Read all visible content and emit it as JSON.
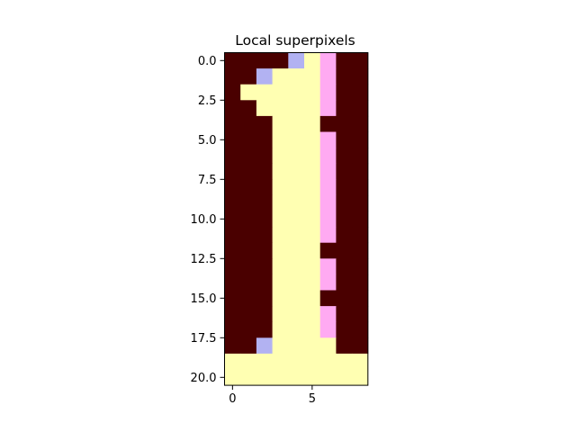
{
  "chart_data": {
    "type": "heatmap",
    "title": "Local superpixels",
    "xlabel": "",
    "ylabel": "",
    "grid": false,
    "xlim": [
      -0.5,
      8.5
    ],
    "ylim": [
      20.5,
      -0.5
    ],
    "x_ticks": [
      0,
      5
    ],
    "x_tick_labels": [
      "0",
      "5"
    ],
    "y_ticks": [
      0,
      2.5,
      5,
      7.5,
      10,
      12.5,
      15,
      17.5,
      20
    ],
    "y_tick_labels": [
      "0.0",
      "2.5",
      "5.0",
      "7.5",
      "10.0",
      "12.5",
      "15.0",
      "17.5",
      "20.0"
    ],
    "legend": [
      {
        "id": 0,
        "color": "#4a0000"
      },
      {
        "id": 1,
        "color": "#ffffb2"
      },
      {
        "id": 2,
        "color": "#ffaaf2"
      },
      {
        "id": 3,
        "color": "#b2b2f2"
      }
    ],
    "rows": 21,
    "cols": 9,
    "values": [
      [
        0,
        0,
        0,
        0,
        3,
        1,
        2,
        0,
        0
      ],
      [
        0,
        0,
        3,
        1,
        1,
        1,
        2,
        0,
        0
      ],
      [
        0,
        1,
        1,
        1,
        1,
        1,
        2,
        0,
        0
      ],
      [
        0,
        0,
        1,
        1,
        1,
        1,
        2,
        0,
        0
      ],
      [
        0,
        0,
        0,
        1,
        1,
        1,
        0,
        0,
        0
      ],
      [
        0,
        0,
        0,
        1,
        1,
        1,
        2,
        0,
        0
      ],
      [
        0,
        0,
        0,
        1,
        1,
        1,
        2,
        0,
        0
      ],
      [
        0,
        0,
        0,
        1,
        1,
        1,
        2,
        0,
        0
      ],
      [
        0,
        0,
        0,
        1,
        1,
        1,
        2,
        0,
        0
      ],
      [
        0,
        0,
        0,
        1,
        1,
        1,
        2,
        0,
        0
      ],
      [
        0,
        0,
        0,
        1,
        1,
        1,
        2,
        0,
        0
      ],
      [
        0,
        0,
        0,
        1,
        1,
        1,
        2,
        0,
        0
      ],
      [
        0,
        0,
        0,
        1,
        1,
        1,
        0,
        0,
        0
      ],
      [
        0,
        0,
        0,
        1,
        1,
        1,
        2,
        0,
        0
      ],
      [
        0,
        0,
        0,
        1,
        1,
        1,
        2,
        0,
        0
      ],
      [
        0,
        0,
        0,
        1,
        1,
        1,
        0,
        0,
        0
      ],
      [
        0,
        0,
        0,
        1,
        1,
        1,
        2,
        0,
        0
      ],
      [
        0,
        0,
        0,
        1,
        1,
        1,
        2,
        0,
        0
      ],
      [
        0,
        0,
        3,
        1,
        1,
        1,
        1,
        0,
        0
      ],
      [
        1,
        1,
        1,
        1,
        1,
        1,
        1,
        1,
        1
      ],
      [
        1,
        1,
        1,
        1,
        1,
        1,
        1,
        1,
        1
      ]
    ]
  }
}
